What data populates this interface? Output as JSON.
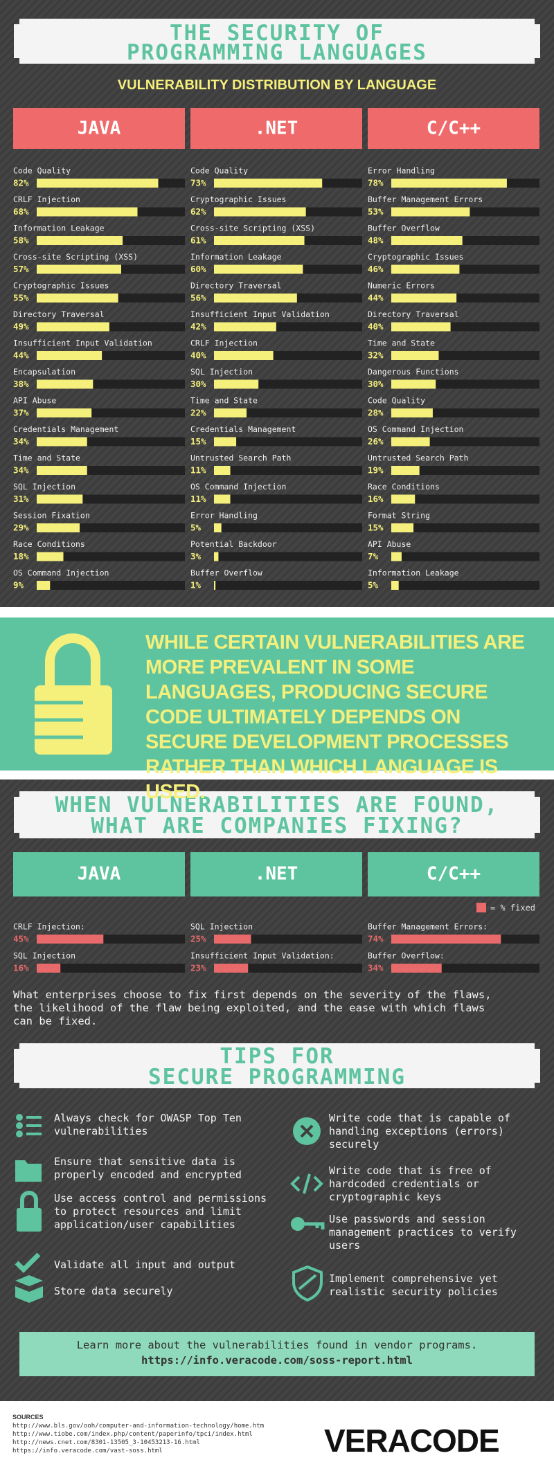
{
  "header": {
    "title": [
      "THE SECURITY OF",
      "PROGRAMMING LANGUAGES"
    ],
    "subtitle": "VULNERABILITY DISTRIBUTION BY LANGUAGE"
  },
  "chart_data": [
    {
      "type": "bar",
      "title": "JAVA",
      "color": "#f5ef7c",
      "xlim": [
        0,
        100
      ],
      "categories": [
        "Code Quality",
        "CRLF Injection",
        "Information Leakage",
        "Cross-site Scripting (XSS)",
        "Cryptographic Issues",
        "Directory Traversal",
        "Insufficient Input Validation",
        "Encapsulation",
        "API Abuse",
        "Credentials Management",
        "Time and State",
        "SQL Injection",
        "Session Fixation",
        "Race Conditions",
        "OS Command Injection"
      ],
      "values": [
        82,
        68,
        58,
        57,
        55,
        49,
        44,
        38,
        37,
        34,
        34,
        31,
        29,
        18,
        9
      ],
      "value_labels": [
        "82%",
        "68%",
        "58%",
        "57%",
        "55%",
        "49%",
        "44%",
        "38%",
        "37%",
        "34%",
        "34%",
        "31%",
        "29%",
        "18%",
        "9%"
      ]
    },
    {
      "type": "bar",
      "title": ".NET",
      "color": "#f5ef7c",
      "xlim": [
        0,
        100
      ],
      "categories": [
        "Code Quality",
        "Cryptographic Issues",
        "Cross-site Scripting (XSS)",
        "Information Leakage",
        "Directory Traversal",
        "Insufficient Input Validation",
        "CRLF Injection",
        "SQL Injection",
        "Time and State",
        "Credentials Management",
        "Untrusted Search Path",
        "OS Command Injection",
        "Error Handling",
        "Potential Backdoor",
        "Buffer Overflow"
      ],
      "values": [
        73,
        62,
        61,
        60,
        56,
        42,
        40,
        30,
        22,
        15,
        11,
        11,
        5,
        3,
        1
      ],
      "value_labels": [
        "73%",
        "62%",
        "61%",
        "60%",
        "56%",
        "42%",
        "40%",
        "30%",
        "22%",
        "15%",
        "11%",
        "11%",
        "5%",
        "3%",
        "1%"
      ]
    },
    {
      "type": "bar",
      "title": "C/C++",
      "color": "#f5ef7c",
      "xlim": [
        0,
        100
      ],
      "categories": [
        "Error Handling",
        "Buffer Management Errors",
        "Buffer Overflow",
        "Cryptographic Issues",
        "Numeric Errors",
        "Directory Traversal",
        "Time and State",
        "Dangerous Functions",
        "Code Quality",
        "OS Command Injection",
        "Untrusted Search Path",
        "Race Conditions",
        "Format String",
        "API Abuse",
        "Information Leakage"
      ],
      "values": [
        78,
        53,
        48,
        46,
        44,
        40,
        32,
        30,
        28,
        26,
        19,
        16,
        15,
        7,
        5
      ],
      "value_labels": [
        "78%",
        "53%",
        "48%",
        "46%",
        "44%",
        "40%",
        "32%",
        "30%",
        "28%",
        "26%",
        "19%",
        "16%",
        "15%",
        "7%",
        "5%"
      ]
    },
    {
      "type": "bar",
      "title": "JAVA",
      "color": "#e86a6a",
      "xlim": [
        0,
        100
      ],
      "categories": [
        "CRLF Injection:",
        "SQL Injection"
      ],
      "values": [
        45,
        16
      ],
      "value_labels": [
        "45%",
        "16%"
      ]
    },
    {
      "type": "bar",
      "title": ".NET",
      "color": "#e86a6a",
      "xlim": [
        0,
        100
      ],
      "categories": [
        "SQL Injection",
        "Insufficient Input Validation:"
      ],
      "values": [
        25,
        23
      ],
      "value_labels": [
        "25%",
        "23%"
      ]
    },
    {
      "type": "bar",
      "title": "C/C++",
      "color": "#e86a6a",
      "xlim": [
        0,
        100
      ],
      "categories": [
        "Buffer Management Errors:",
        "Buffer Overflow:"
      ],
      "values": [
        74,
        34
      ],
      "value_labels": [
        "74%",
        "34%"
      ]
    }
  ],
  "callout": "WHILE CERTAIN VULNERABILITIES ARE MORE PREVALENT IN SOME LANGUAGES, PRODUCING SECURE CODE ULTIMATELY DEPENDS ON SECURE DEVELOPMENT PROCESSES RATHER THAN WHICH LANGUAGE IS USED.",
  "fixes": {
    "title": [
      "WHEN VULNERABILITIES ARE FOUND,",
      "WHAT ARE COMPANIES FIXING?"
    ],
    "legend": "= % fixed",
    "note": "What enterprises choose to fix first depends on the severity of the flaws, the likelihood of the flaw being exploited, and the ease with which flaws can be fixed."
  },
  "tips": {
    "title": [
      "TIPS FOR",
      "SECURE PROGRAMMING"
    ],
    "left": [
      "Always check for OWASP Top Ten vulnerabilities",
      "Ensure that sensitive data is properly encoded and encrypted",
      "Use access control and permissions to protect resources and limit application/user capabilities",
      "Validate all input and output",
      "Store data securely"
    ],
    "right": [
      "Write code that is capable of handling exceptions (errors) securely",
      "Write code that is free of hardcoded credentials or cryptographic keys",
      "Use passwords and session management practices to verify users",
      "Implement comprehensive yet realistic security policies"
    ]
  },
  "footer": {
    "text": "Learn more about the vulnerabilities found in vendor programs.",
    "link": "https://info.veracode.com/soss-report.html"
  },
  "sources": {
    "heading": "SOURCES",
    "urls": [
      "http://www.bls.gov/ooh/computer-and-information-technology/home.htm",
      "http://www.tiobe.com/index.php/content/paperinfo/tpci/index.html",
      "http://news.cnet.com/8301-13505_3-10453213-16.html",
      "https://info.veracode.com/vast-soss.html"
    ]
  },
  "logo": "VERACODE"
}
